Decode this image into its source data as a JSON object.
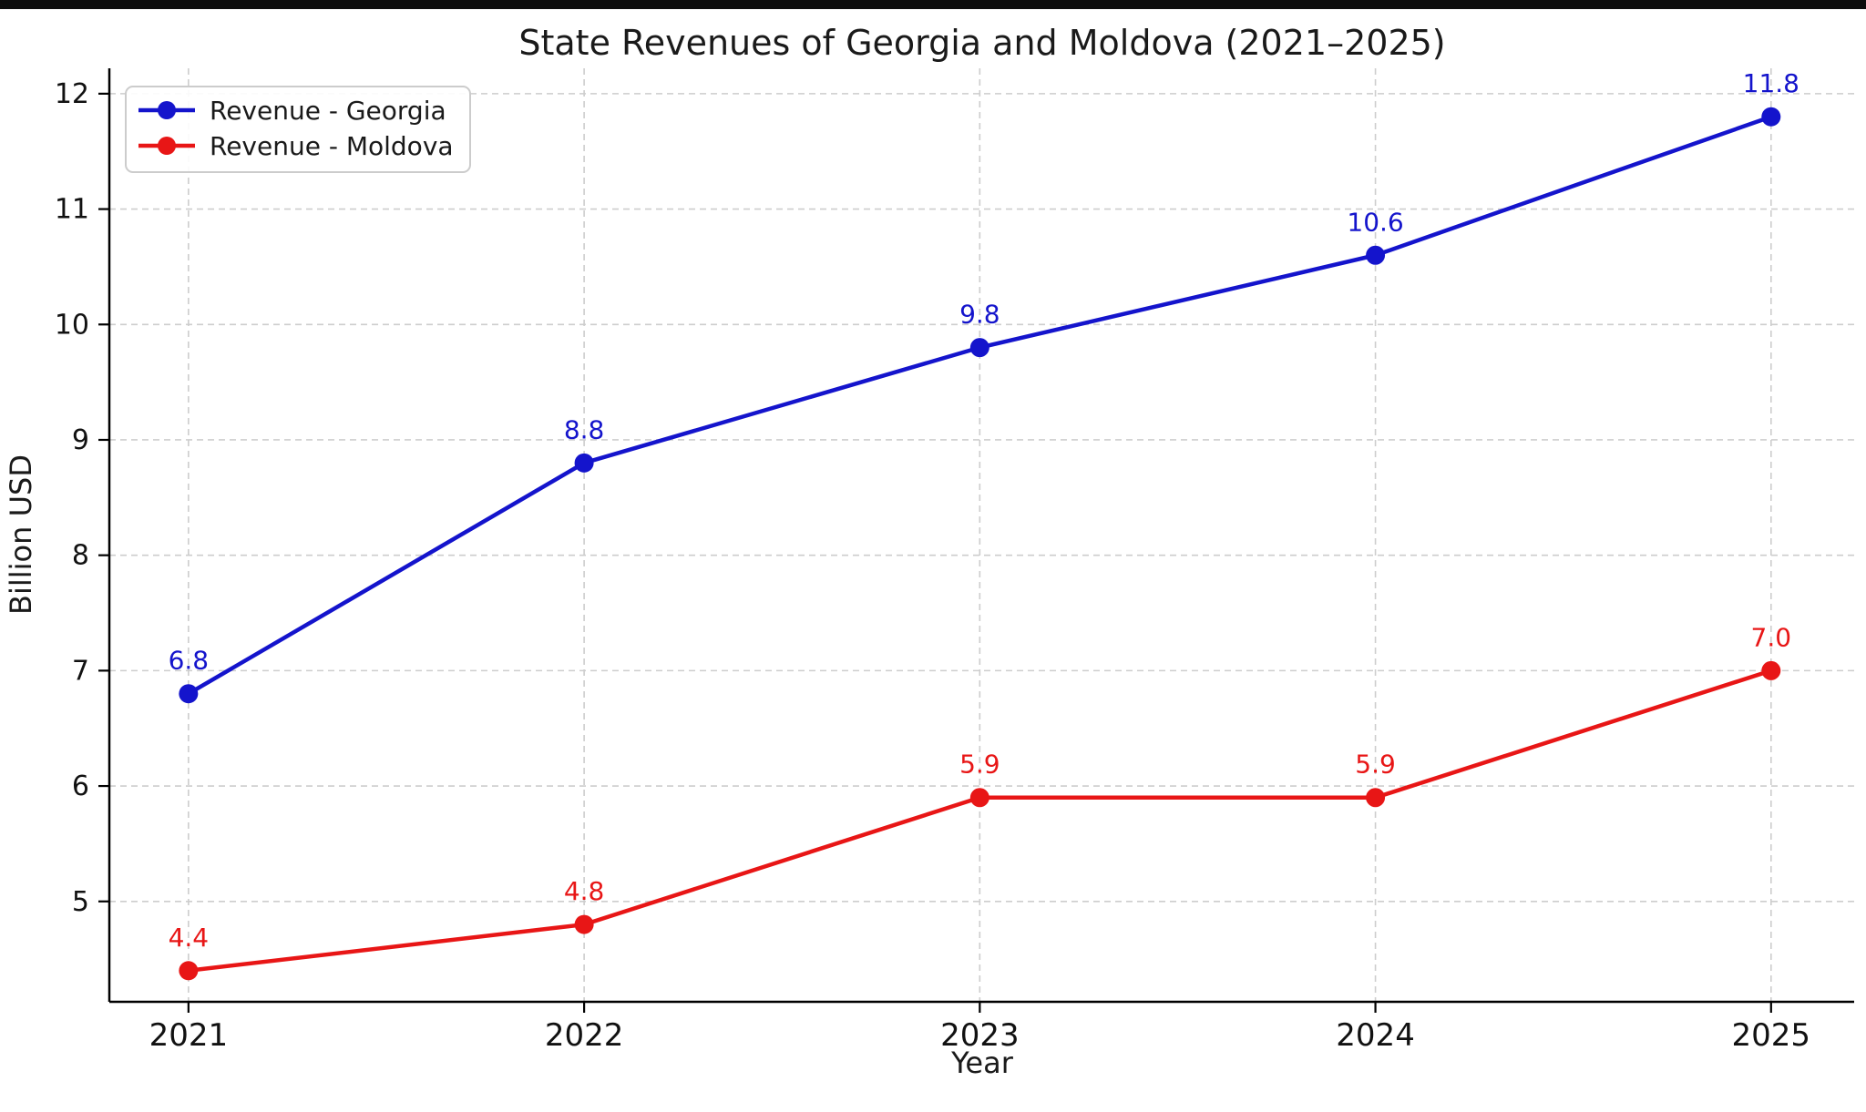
{
  "window": {
    "top_bar_color": "#0c0c0c",
    "background_color": "#ffffff"
  },
  "chart_data": {
    "type": "line",
    "title": "State Revenues of Georgia and Moldova (2021–2025)",
    "xlabel": "Year",
    "ylabel": "Billion USD",
    "x": [
      2021,
      2022,
      2023,
      2024,
      2025
    ],
    "x_tick_labels": [
      "2021",
      "2022",
      "2023",
      "2024",
      "2025"
    ],
    "y_ticks": [
      5,
      6,
      7,
      8,
      9,
      10,
      11,
      12
    ],
    "xlim": [
      2020.8,
      2025.21
    ],
    "ylim": [
      4.13,
      12.22
    ],
    "grid": true,
    "grid_style": "dashed",
    "grid_color": "#cdcdcd",
    "legend_position": "upper-left",
    "series": [
      {
        "name": "Revenue - Georgia",
        "color": "#1414cc",
        "values": [
          6.8,
          8.8,
          9.8,
          10.6,
          11.8
        ],
        "point_labels": [
          "6.8",
          "8.8",
          "9.8",
          "10.6",
          "11.8"
        ]
      },
      {
        "name": "Revenue - Moldova",
        "color": "#e81616",
        "values": [
          4.4,
          4.8,
          5.9,
          5.9,
          7.0
        ],
        "point_labels": [
          "4.4",
          "4.8",
          "5.9",
          "5.9",
          "7.0"
        ]
      }
    ]
  }
}
